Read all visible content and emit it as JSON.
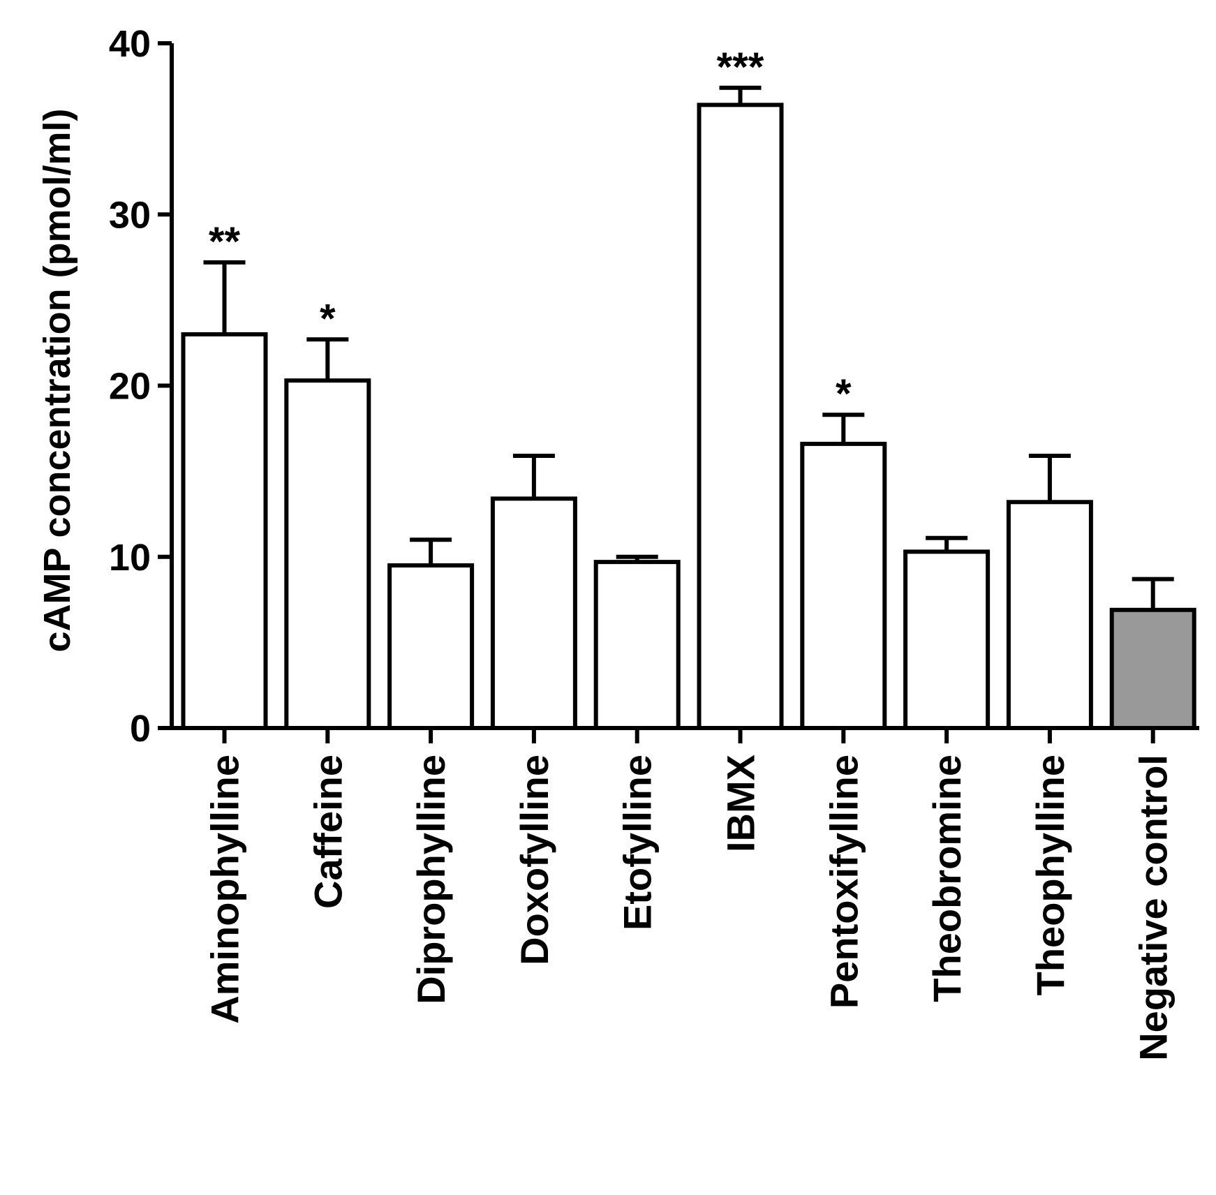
{
  "chart_data": {
    "type": "bar",
    "title": "",
    "xlabel": "",
    "ylabel": "cAMP concentration (pmol/ml)",
    "ylim": [
      0,
      40
    ],
    "yticks": [
      "0",
      "10",
      "20",
      "30",
      "40"
    ],
    "grid": false,
    "legend": "none",
    "categories": [
      "Aminophylline",
      "Caffeine",
      "Diprophylline",
      "Doxofylline",
      "Etofylline",
      "IBMX",
      "Pentoxifylline",
      "Theobromine",
      "Theophylline",
      "Negative control"
    ],
    "values": [
      23.0,
      20.3,
      9.5,
      13.4,
      9.7,
      36.4,
      16.6,
      10.3,
      13.2,
      6.9
    ],
    "errors": [
      4.2,
      2.4,
      1.5,
      2.5,
      0.3,
      1.0,
      1.7,
      0.8,
      2.7,
      1.8
    ],
    "significance": [
      "**",
      "*",
      "",
      "",
      "",
      "***",
      "*",
      "",
      "",
      ""
    ],
    "colors": {
      "bar_fill": "#ffffff",
      "control_fill": "#999999",
      "stroke": "#000000"
    }
  }
}
